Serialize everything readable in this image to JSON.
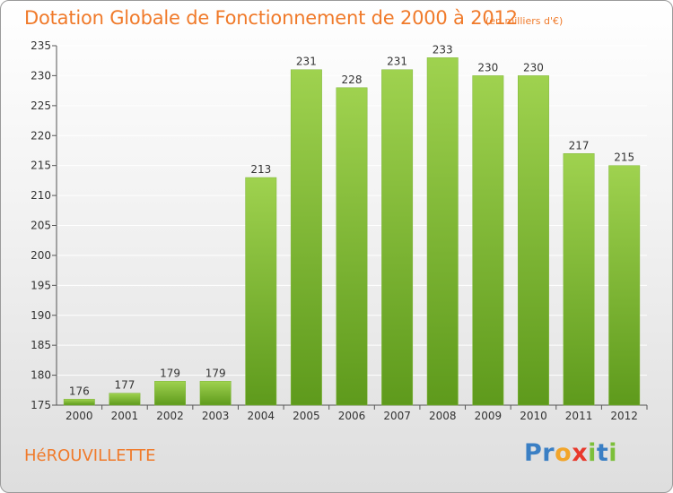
{
  "header": {
    "title": "Dotation Globale de Fonctionnement de 2000 à 2012",
    "unit_note": "(en milliers d'€)"
  },
  "footer": {
    "commune": "HéROUVILLETTE",
    "logo_letters": [
      {
        "char": "P",
        "color": "#3a7fc4"
      },
      {
        "char": "r",
        "color": "#3a7fc4"
      },
      {
        "char": "o",
        "color": "#f2a52a"
      },
      {
        "char": "x",
        "color": "#e8392c"
      },
      {
        "char": "i",
        "color": "#7cbf3a"
      },
      {
        "char": "t",
        "color": "#3a7fc4"
      },
      {
        "char": "i",
        "color": "#7cbf3a"
      }
    ]
  },
  "colors": {
    "accent": "#f07a2a",
    "bar_top": "#9fd24f",
    "bar_bottom": "#5e9a1c"
  },
  "chart_data": {
    "type": "bar",
    "title": "Dotation Globale de Fonctionnement de 2000 à 2012",
    "subtitle": "(en milliers d'€)",
    "categories": [
      "2000",
      "2001",
      "2002",
      "2003",
      "2004",
      "2005",
      "2006",
      "2007",
      "2008",
      "2009",
      "2010",
      "2011",
      "2012"
    ],
    "values": [
      176,
      177,
      179,
      179,
      213,
      231,
      228,
      231,
      233,
      230,
      230,
      217,
      215
    ],
    "xlabel": "",
    "ylabel": "",
    "ylim": [
      175,
      235
    ],
    "yticks": [
      175,
      180,
      185,
      190,
      195,
      200,
      205,
      210,
      215,
      220,
      225,
      230,
      235
    ],
    "grid": true,
    "legend": "none"
  }
}
